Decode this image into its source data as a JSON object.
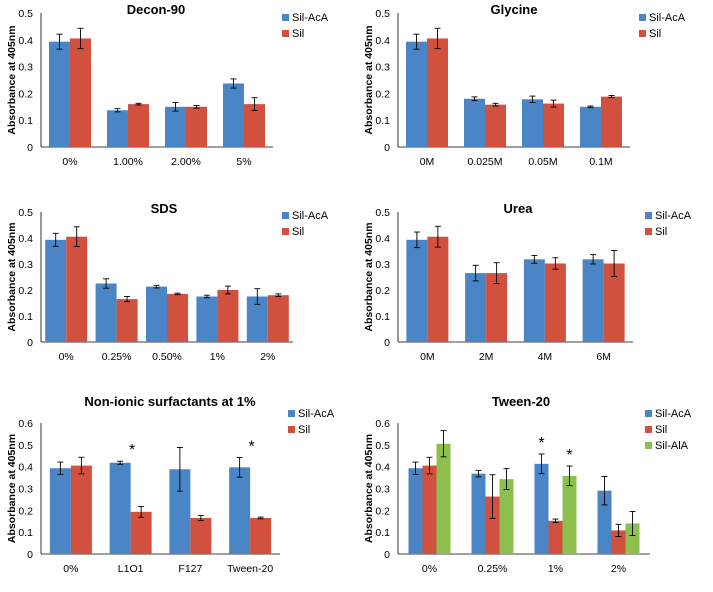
{
  "colors": {
    "Sil-AcA": "#4a86c5",
    "Sil": "#d2503e",
    "Sil-AlA": "#8dc04f",
    "axis": "#000000"
  },
  "chart_data": [
    {
      "type": "bar",
      "title": "Decon-90",
      "ylabel": "Absorbance at 405nm",
      "xlabel": "",
      "ylim": [
        0,
        0.5
      ],
      "yticks": [
        "0",
        "0.1",
        "0.2",
        "0.3",
        "0.4",
        "0.5"
      ],
      "categories": [
        "0%",
        "1.00%",
        "2.00%",
        "5%"
      ],
      "series": [
        {
          "name": "Sil-AcA",
          "values": [
            0.393,
            0.137,
            0.15,
            0.237
          ],
          "errors": [
            0.028,
            0.006,
            0.016,
            0.017
          ]
        },
        {
          "name": "Sil",
          "values": [
            0.405,
            0.16,
            0.15,
            0.16
          ],
          "errors": [
            0.038,
            0.003,
            0.005,
            0.024
          ]
        }
      ],
      "annotations": []
    },
    {
      "type": "bar",
      "title": "Glycine",
      "ylabel": "Absorbance at 405nm",
      "xlabel": "",
      "ylim": [
        0,
        0.5
      ],
      "yticks": [
        "0",
        "0.1",
        "0.2",
        "0.3",
        "0.4",
        "0.5"
      ],
      "categories": [
        "0M",
        "0.025M",
        "0.05M",
        "0.1M"
      ],
      "series": [
        {
          "name": "Sil-AcA",
          "values": [
            0.393,
            0.18,
            0.178,
            0.15
          ],
          "errors": [
            0.028,
            0.007,
            0.012,
            0.003
          ]
        },
        {
          "name": "Sil",
          "values": [
            0.405,
            0.158,
            0.162,
            0.188
          ],
          "errors": [
            0.038,
            0.005,
            0.013,
            0.004
          ]
        }
      ],
      "annotations": []
    },
    {
      "type": "bar",
      "title": "SDS",
      "ylabel": "Absorbance at 405nm",
      "xlabel": "",
      "ylim": [
        0,
        0.5
      ],
      "yticks": [
        "0",
        "0.1",
        "0.2",
        "0.3",
        "0.4",
        "0.5"
      ],
      "categories": [
        "0%",
        "0.25%",
        "0.50%",
        "1%",
        "2%"
      ],
      "series": [
        {
          "name": "Sil-AcA",
          "values": [
            0.393,
            0.225,
            0.213,
            0.175,
            0.175
          ],
          "errors": [
            0.025,
            0.018,
            0.005,
            0.005,
            0.03
          ]
        },
        {
          "name": "Sil",
          "values": [
            0.405,
            0.165,
            0.185,
            0.2,
            0.18
          ],
          "errors": [
            0.038,
            0.01,
            0.003,
            0.015,
            0.005
          ]
        }
      ],
      "annotations": []
    },
    {
      "type": "bar",
      "title": "Urea",
      "ylabel": "Absorbance at 405nm",
      "xlabel": "",
      "ylim": [
        0,
        0.5
      ],
      "yticks": [
        "0",
        "0.1",
        "0.2",
        "0.3",
        "0.4",
        "0.5"
      ],
      "categories": [
        "0M",
        "2M",
        "4M",
        "6M"
      ],
      "series": [
        {
          "name": "Sil-AcA",
          "values": [
            0.393,
            0.265,
            0.318,
            0.318
          ],
          "errors": [
            0.03,
            0.03,
            0.015,
            0.018
          ]
        },
        {
          "name": "Sil",
          "values": [
            0.405,
            0.265,
            0.302,
            0.302
          ],
          "errors": [
            0.04,
            0.04,
            0.022,
            0.05
          ]
        }
      ],
      "annotations": []
    },
    {
      "type": "bar",
      "title": "Non-ionic surfactants at 1%",
      "ylabel": "Absorbance at 405nm",
      "xlabel": "",
      "ylim": [
        0,
        0.6
      ],
      "yticks": [
        "0",
        "0.1",
        "0.2",
        "0.3",
        "0.4",
        "0.5",
        "0.6"
      ],
      "categories": [
        "0%",
        "L1O1",
        "F127",
        "Tween-20"
      ],
      "series": [
        {
          "name": "Sil-AcA",
          "values": [
            0.393,
            0.418,
            0.388,
            0.397
          ],
          "errors": [
            0.028,
            0.007,
            0.1,
            0.045
          ]
        },
        {
          "name": "Sil",
          "values": [
            0.405,
            0.193,
            0.165,
            0.165
          ],
          "errors": [
            0.038,
            0.025,
            0.012,
            0.004
          ]
        }
      ],
      "annotations": [
        {
          "text": "*",
          "category": "L1O1",
          "series": "Sil-AcA"
        },
        {
          "text": "*",
          "category": "Tween-20",
          "series": "Sil-AcA"
        }
      ]
    },
    {
      "type": "bar",
      "title": "Tween-20",
      "ylabel": "Absorbance at 405nm",
      "xlabel": "",
      "ylim": [
        0,
        0.6
      ],
      "yticks": [
        "0",
        "0.1",
        "0.2",
        "0.3",
        "0.4",
        "0.5",
        "0.6"
      ],
      "categories": [
        "0%",
        "0.25%",
        "1%",
        "2%"
      ],
      "series": [
        {
          "name": "Sil-AcA",
          "values": [
            0.393,
            0.368,
            0.413,
            0.29
          ],
          "errors": [
            0.028,
            0.015,
            0.045,
            0.065
          ]
        },
        {
          "name": "Sil",
          "values": [
            0.405,
            0.263,
            0.152,
            0.108
          ],
          "errors": [
            0.038,
            0.1,
            0.008,
            0.028
          ]
        },
        {
          "name": "Sil-AlA",
          "values": [
            0.505,
            0.343,
            0.358,
            0.14
          ],
          "errors": [
            0.06,
            0.048,
            0.045,
            0.055
          ]
        }
      ],
      "annotations": [
        {
          "text": "*",
          "category": "1%",
          "series": "Sil-AcA"
        },
        {
          "text": "*",
          "category": "1%",
          "series": "Sil-AlA"
        }
      ]
    }
  ]
}
